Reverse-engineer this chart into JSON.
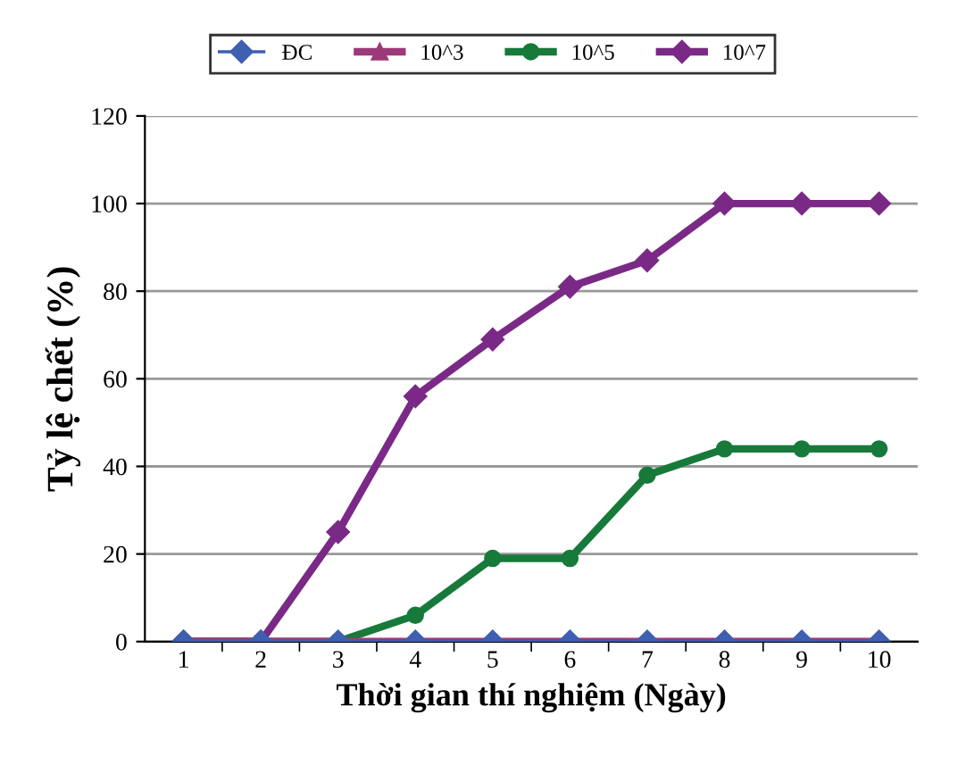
{
  "chart_data": {
    "type": "line",
    "xlabel": "Thời gian thí nghiệm (Ngày)",
    "ylabel": "Tỷ lệ chết (%)",
    "categories": [
      "1",
      "2",
      "3",
      "4",
      "5",
      "6",
      "7",
      "8",
      "9",
      "10"
    ],
    "series": [
      {
        "name": "ĐC",
        "color": "#3f5fb0",
        "marker": "diamond",
        "values": [
          0,
          0,
          0,
          0,
          0,
          0,
          0,
          0,
          0,
          0
        ]
      },
      {
        "name": "10^3",
        "color": "#9c3a78",
        "marker": "triangle",
        "values": [
          0,
          0,
          0,
          0,
          0,
          0,
          0,
          0,
          0,
          0
        ]
      },
      {
        "name": "10^5",
        "color": "#177a3a",
        "marker": "circle",
        "values": [
          0,
          0,
          0,
          6,
          19,
          19,
          38,
          44,
          44,
          44
        ]
      },
      {
        "name": "10^7",
        "color": "#7a2a86",
        "marker": "diamond",
        "values": [
          0,
          0,
          25,
          56,
          69,
          81,
          87,
          100,
          100,
          100
        ]
      }
    ],
    "ylim": [
      0,
      120
    ],
    "yticks": [
      0,
      20,
      40,
      60,
      80,
      100,
      120
    ],
    "grid": "y",
    "legend": "top"
  }
}
